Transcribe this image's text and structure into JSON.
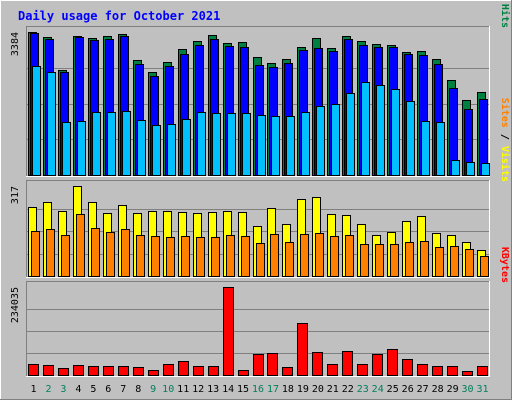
{
  "chart_data": {
    "type": "bar",
    "title": "Daily usage for October 2021",
    "categories": [
      "1",
      "2",
      "3",
      "4",
      "5",
      "6",
      "7",
      "8",
      "9",
      "10",
      "11",
      "12",
      "13",
      "14",
      "15",
      "16",
      "17",
      "18",
      "19",
      "20",
      "21",
      "22",
      "23",
      "24",
      "25",
      "26",
      "27",
      "28",
      "29",
      "30",
      "31"
    ],
    "weekend_days": [
      "2",
      "3",
      "9",
      "10",
      "16",
      "17",
      "23",
      "24",
      "30",
      "31"
    ],
    "panels": [
      {
        "id": "hits-files-pages",
        "max_label": "3384",
        "ymax": 3384,
        "legend": [
          {
            "text": "Pages",
            "color": "#00c0ff"
          },
          {
            "text": " / ",
            "color": "#000000"
          },
          {
            "text": "Files",
            "color": "#0000ff"
          },
          {
            "text": " / ",
            "color": "#000000"
          },
          {
            "text": "Hits",
            "color": "#008040"
          }
        ],
        "series": [
          {
            "name": "Hits",
            "color": "#008040",
            "values": [
              3384,
              3260,
              2480,
              3300,
              3250,
              3280,
              3340,
              2730,
              2440,
              2670,
              2980,
              3180,
              3320,
              3130,
              3140,
              2800,
              2640,
              2740,
              3040,
              3240,
              3000,
              3290,
              3160,
              3110,
              3080,
              2920,
              2930,
              2750,
              2240,
              1780,
              1970
            ]
          },
          {
            "name": "Files",
            "color": "#0000ff",
            "values": [
              3370,
              3230,
              2440,
              3260,
              3200,
              3220,
              3300,
              2630,
              2340,
              2570,
              2870,
              3080,
              3230,
              3060,
              3040,
              2600,
              2550,
              2660,
              2960,
              3010,
              2940,
              3220,
              3070,
              3040,
              3020,
              2860,
              2830,
              2620,
              2050,
              1570,
              1800
            ]
          },
          {
            "name": "Pages",
            "color": "#00c0ff",
            "values": [
              2580,
              2440,
              1250,
              1280,
              1480,
              1480,
              1510,
              1310,
              1190,
              1210,
              1330,
              1480,
              1470,
              1460,
              1460,
              1410,
              1400,
              1400,
              1480,
              1630,
              1690,
              1930,
              2200,
              2120,
              2040,
              1760,
              1280,
              1250,
              360,
              310,
              290
            ]
          }
        ]
      },
      {
        "id": "visits-sites",
        "max_label": "317",
        "ymax": 317,
        "legend": [
          {
            "text": "Sites",
            "color": "#ff8000"
          },
          {
            "text": " / ",
            "color": "#000000"
          },
          {
            "text": "Visits",
            "color": "#ffff00"
          }
        ],
        "series": [
          {
            "name": "Visits",
            "color": "#ffff00",
            "values": [
              244,
              262,
              228,
              317,
              260,
              222,
              250,
              222,
              230,
              228,
              225,
              222,
              224,
              228,
              225,
              175,
              240,
              182,
              270,
              278,
              220,
              216,
              183,
              145,
              156,
              192,
              210,
              150,
              145,
              120,
              92
            ]
          },
          {
            "name": "Sites",
            "color": "#ff8000",
            "values": [
              158,
              165,
              146,
              220,
              170,
              156,
              165,
              145,
              140,
              137,
              140,
              136,
              136,
              145,
              142,
              115,
              148,
              118,
              148,
              151,
              140,
              145,
              113,
              113,
              113,
              118,
              125,
              103,
              107,
              95,
              70
            ]
          }
        ]
      },
      {
        "id": "kbytes",
        "max_label": "234035",
        "ymax": 234035,
        "legend": [
          {
            "text": "KBytes",
            "color": "#ff0000"
          }
        ],
        "series": [
          {
            "name": "KBytes",
            "color": "#ff0000",
            "values": [
              28500,
              26000,
              17500,
              25500,
              24500,
              24500,
              24000,
              20000,
              14000,
              29500,
              37500,
              23500,
              23500,
              234035,
              13000,
              56000,
              58000,
              21500,
              139000,
              62000,
              29000,
              64500,
              30000,
              57000,
              69500,
              42000,
              28500,
              24500,
              24000,
              11500,
              23000
            ]
          }
        ]
      }
    ]
  }
}
